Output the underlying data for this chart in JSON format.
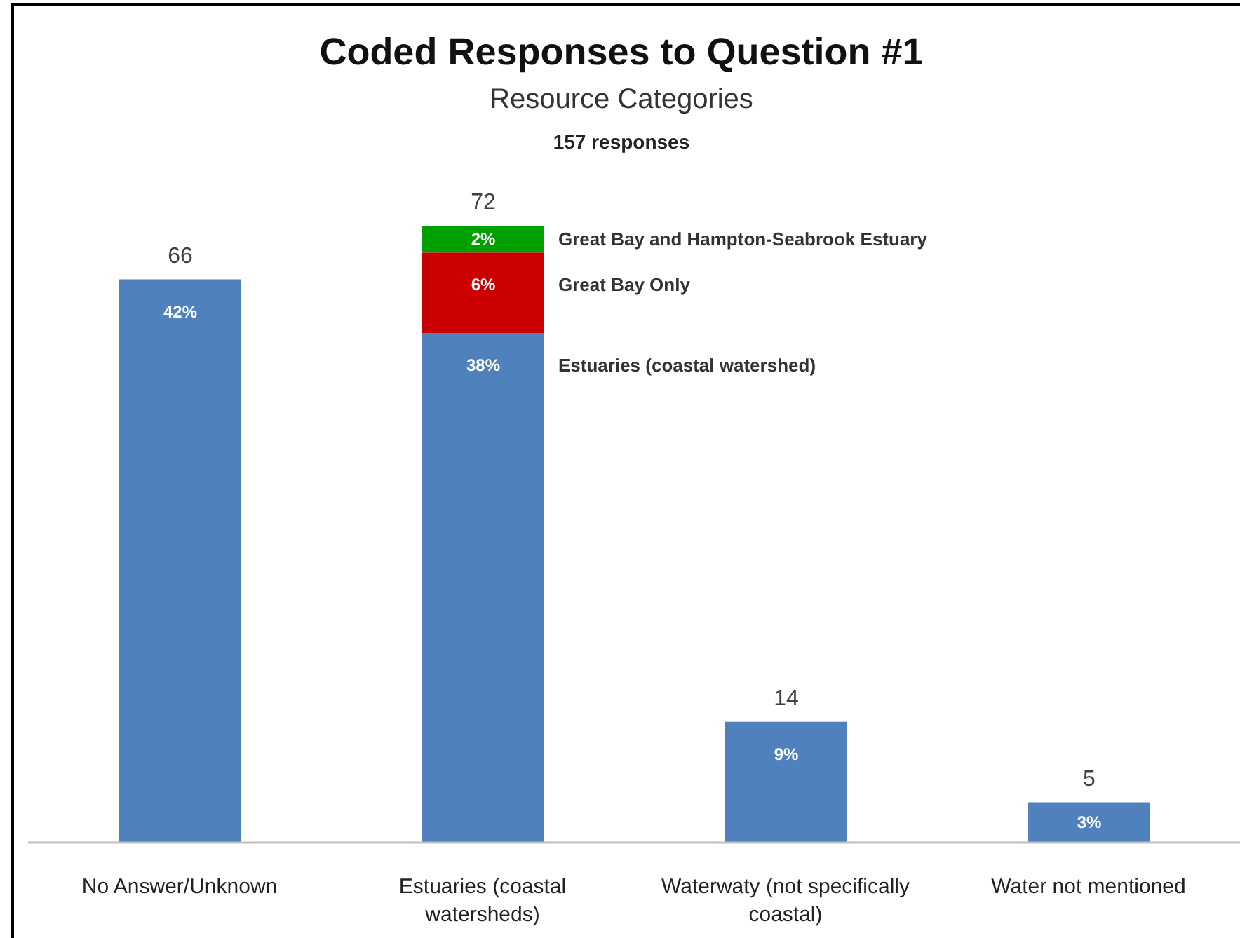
{
  "chart_data": {
    "type": "bar",
    "title": "Coded Responses to Question #1",
    "subtitle": "Resource Categories",
    "annotations": [
      "157 responses",
      {
        "text": "66",
        "x": "No Answer/Unknown",
        "y": 42
      },
      {
        "text": "72",
        "x": "Estuaries (coastal watersheds)",
        "y": 46
      },
      {
        "text": "14",
        "x": "Waterwaty (not specifically coastal)",
        "y": 9
      },
      {
        "text": "5",
        "x": "Water not mentioned",
        "y": 3
      }
    ],
    "categories": [
      "No Answer/Unknown",
      "Estuaries (coastal watersheds)",
      "Waterwaty (not specifically coastal)",
      "Water not mentioned"
    ],
    "stacked": true,
    "series": [
      {
        "name": "Estuaries (coastal watershed)",
        "color": "#4f81bd",
        "values": [
          42,
          38,
          9,
          3
        ],
        "value_labels": [
          "42%",
          "38%",
          "9%",
          "3%"
        ]
      },
      {
        "name": "Great Bay Only",
        "color": "#cc0000",
        "values": [
          null,
          6,
          null,
          null
        ],
        "value_labels": [
          null,
          "6%",
          null,
          null
        ]
      },
      {
        "name": "Great Bay and Hampton-Seabrook Estuary",
        "color": "#00a000",
        "values": [
          null,
          2,
          null,
          null
        ],
        "value_labels": [
          null,
          "2%",
          null,
          null
        ]
      }
    ]
  }
}
